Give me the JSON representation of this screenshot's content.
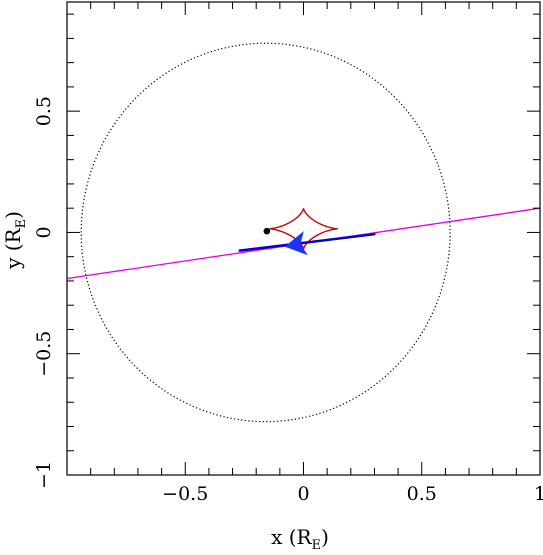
{
  "chart_data": {
    "type": "line",
    "title": "",
    "xlabel": {
      "text": "x (R",
      "subscript": "E",
      "suffix": ")"
    },
    "ylabel": {
      "text": "y (R",
      "subscript": "E",
      "suffix": ")"
    },
    "xlim": [
      -1.0,
      1.0
    ],
    "ylim": [
      -1.0,
      0.95
    ],
    "x_ticks": [
      {
        "value": -0.5,
        "label": "−0.5"
      },
      {
        "value": 0,
        "label": "0"
      },
      {
        "value": 0.5,
        "label": "0.5"
      },
      {
        "value": 1,
        "label": "1"
      }
    ],
    "y_ticks": [
      {
        "value": -1,
        "label": "−1"
      },
      {
        "value": -0.5,
        "label": "−0.5"
      },
      {
        "value": 0,
        "label": "0"
      },
      {
        "value": 0.5,
        "label": "0.5"
      }
    ],
    "x_minor_step": 0.1,
    "y_minor_step": 0.1,
    "grid": false,
    "legend": "none",
    "einstein_ring": {
      "center": [
        -0.16,
        0.0
      ],
      "radius": 0.78,
      "style": "dotted",
      "color": "#000000"
    },
    "lens_point": {
      "x": -0.155,
      "y": 0.005,
      "color": "#000000"
    },
    "source_trajectory": {
      "points": [
        [
          -1.0,
          -0.19
        ],
        [
          1.0,
          0.1
        ]
      ],
      "color": "#e600e6"
    },
    "caustic": {
      "center": [
        0.0,
        0.015
      ],
      "half_width": 0.145,
      "half_height": 0.085,
      "offset_x": 0.0,
      "color": "#cc0000"
    },
    "data_track": {
      "points": [
        [
          -0.27,
          -0.075
        ],
        [
          0.3,
          -0.007
        ]
      ],
      "color": "#0000cc"
    },
    "arrow": {
      "tail": [
        0.005,
        -0.045
      ],
      "tip": [
        -0.075,
        -0.058
      ],
      "color": "#1a33ff"
    }
  }
}
